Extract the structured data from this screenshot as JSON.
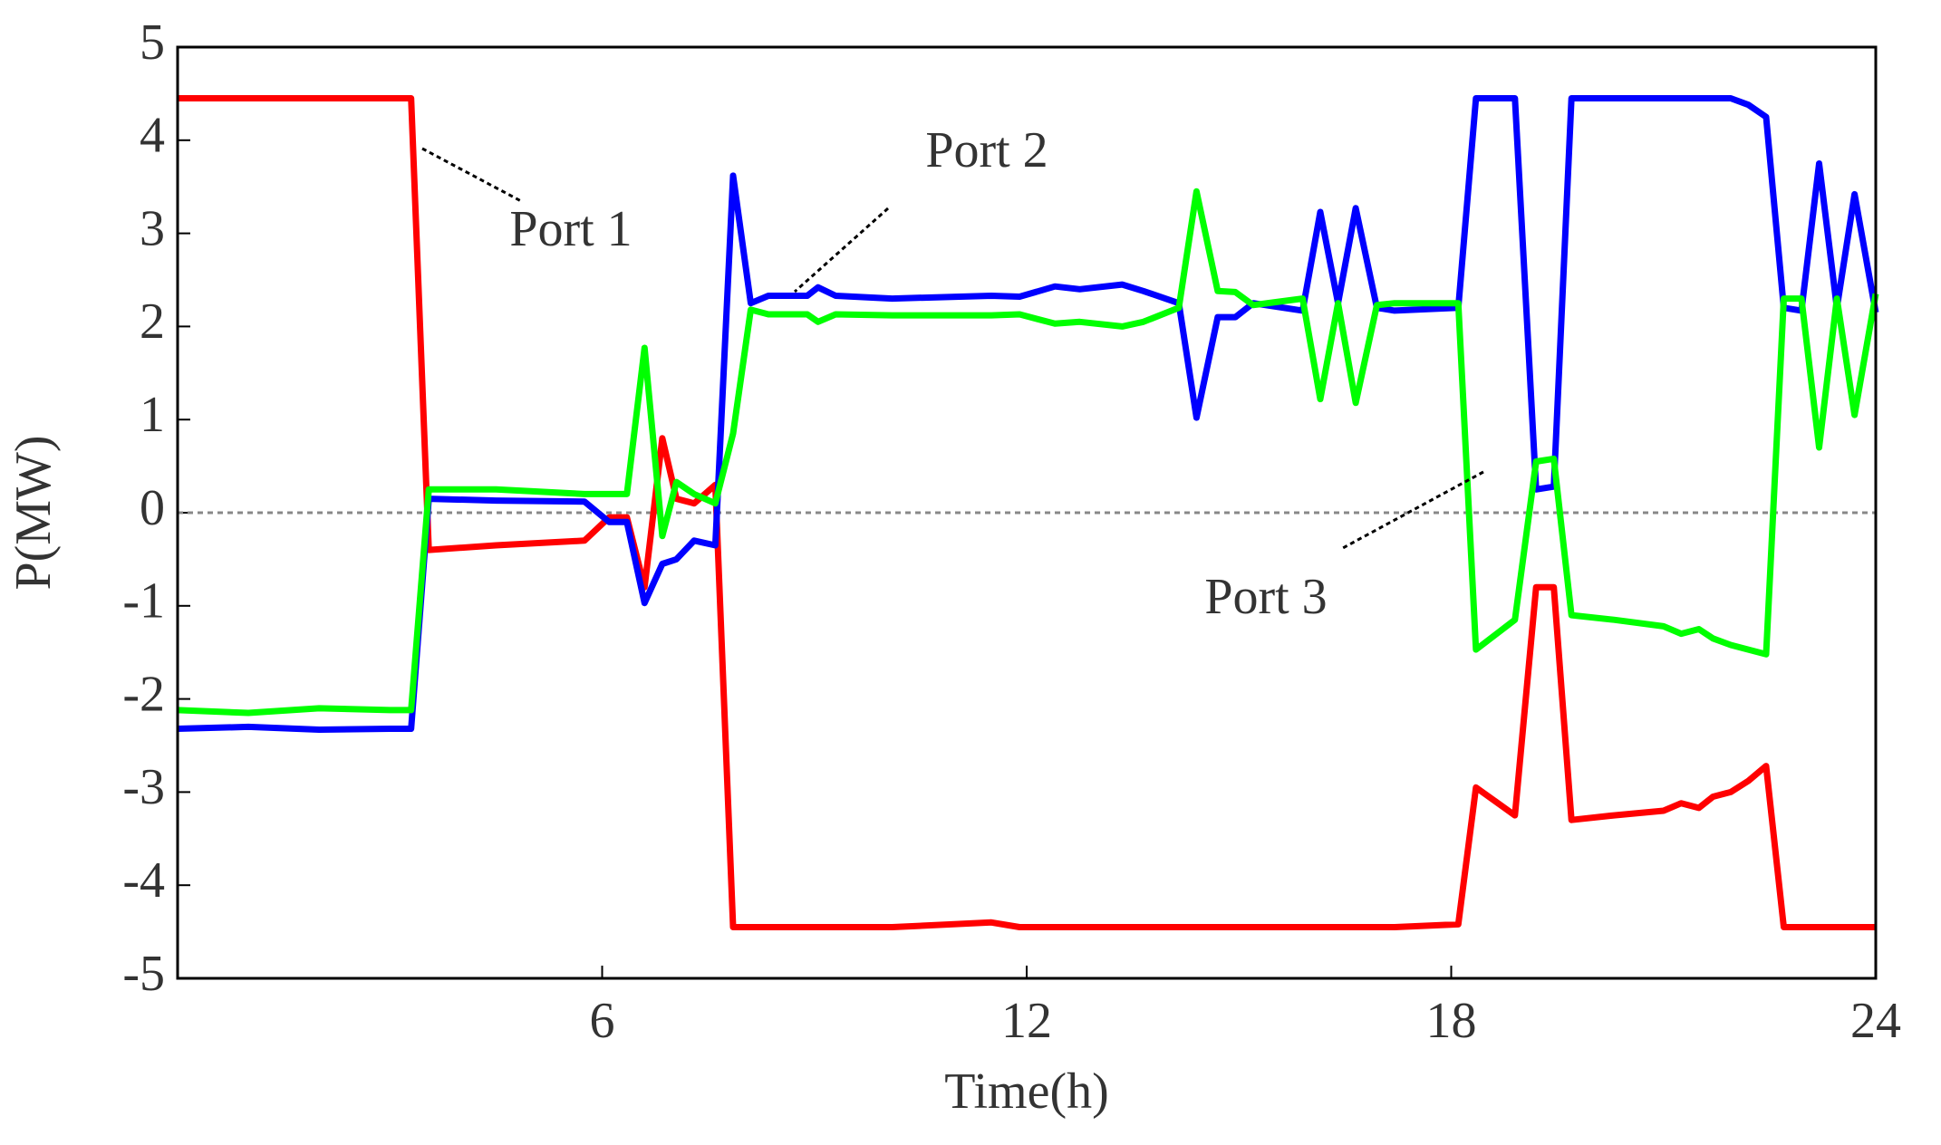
{
  "chart_data": {
    "type": "line",
    "xlabel": "Time(h)",
    "ylabel": "P(MW)",
    "x": [
      0,
      1,
      2,
      3,
      3.3,
      3.55,
      4.5,
      5.75,
      6.1,
      6.35,
      6.6,
      6.85,
      7.05,
      7.3,
      7.6,
      7.85,
      8.1,
      8.35,
      8.9,
      9.05,
      9.3,
      10.1,
      11.5,
      11.9,
      12.4,
      12.75,
      13.35,
      13.65,
      14.15,
      14.4,
      14.7,
      14.95,
      15.2,
      15.9,
      16.15,
      16.4,
      16.65,
      16.95,
      17.2,
      18.1,
      18.35,
      18.9,
      19.2,
      19.45,
      19.7,
      20.3,
      21,
      21.25,
      21.5,
      21.7,
      21.95,
      22.2,
      22.45,
      22.7,
      22.95,
      23.2,
      23.45,
      23.7,
      24
    ],
    "series": [
      {
        "name": "Port 1",
        "color": "#ff0000",
        "values": [
          4.45,
          4.45,
          4.45,
          4.45,
          4.45,
          -0.4,
          -0.35,
          -0.3,
          -0.05,
          -0.05,
          -0.8,
          0.8,
          0.15,
          0.1,
          0.3,
          -4.45,
          -4.45,
          -4.45,
          -4.45,
          -4.45,
          -4.45,
          -4.45,
          -4.4,
          -4.45,
          -4.45,
          -4.45,
          -4.45,
          -4.45,
          -4.45,
          -4.45,
          -4.45,
          -4.45,
          -4.45,
          -4.45,
          -4.45,
          -4.45,
          -4.45,
          -4.45,
          -4.45,
          -4.42,
          -2.95,
          -3.25,
          -0.8,
          -0.8,
          -3.3,
          -3.25,
          -3.2,
          -3.12,
          -3.17,
          -3.05,
          -3.0,
          -2.88,
          -2.72,
          -4.45,
          -4.45,
          -4.45,
          -4.45,
          -4.45,
          -4.45
        ]
      },
      {
        "name": "Port 2",
        "color": "#0000ff",
        "values": [
          -2.32,
          -2.3,
          -2.33,
          -2.32,
          -2.32,
          0.15,
          0.13,
          0.12,
          -0.1,
          -0.1,
          -0.97,
          -0.55,
          -0.5,
          -0.3,
          -0.35,
          3.62,
          2.25,
          2.33,
          2.33,
          2.42,
          2.33,
          2.3,
          2.33,
          2.32,
          2.43,
          2.4,
          2.45,
          2.38,
          2.25,
          1.02,
          2.1,
          2.1,
          2.25,
          2.17,
          3.23,
          2.25,
          3.27,
          2.2,
          2.17,
          2.2,
          4.45,
          4.45,
          0.25,
          0.28,
          4.45,
          4.45,
          4.45,
          4.45,
          4.45,
          4.45,
          4.45,
          4.38,
          4.25,
          2.2,
          2.17,
          3.75,
          2.2,
          3.42,
          2.15
        ]
      },
      {
        "name": "Port 3",
        "color": "#00ff00",
        "values": [
          -2.12,
          -2.15,
          -2.1,
          -2.12,
          -2.12,
          0.25,
          0.25,
          0.2,
          0.2,
          0.2,
          1.77,
          -0.25,
          0.33,
          0.2,
          0.1,
          0.85,
          2.18,
          2.13,
          2.13,
          2.05,
          2.13,
          2.12,
          2.12,
          2.13,
          2.03,
          2.05,
          2.0,
          2.05,
          2.2,
          3.45,
          2.38,
          2.37,
          2.23,
          2.3,
          1.22,
          2.25,
          1.18,
          2.23,
          2.25,
          2.25,
          -1.47,
          -1.15,
          0.55,
          0.58,
          -1.1,
          -1.15,
          -1.22,
          -1.3,
          -1.25,
          -1.35,
          -1.42,
          -1.47,
          -1.52,
          2.3,
          2.3,
          0.7,
          2.3,
          1.05,
          2.35
        ]
      }
    ],
    "xlim": [
      0,
      24
    ],
    "xticks": [
      6,
      12,
      18,
      24
    ],
    "ylim": [
      -5,
      5
    ],
    "yticks": [
      -5,
      -4,
      -3,
      -2,
      -1,
      0,
      1,
      2,
      3,
      4,
      5
    ]
  }
}
